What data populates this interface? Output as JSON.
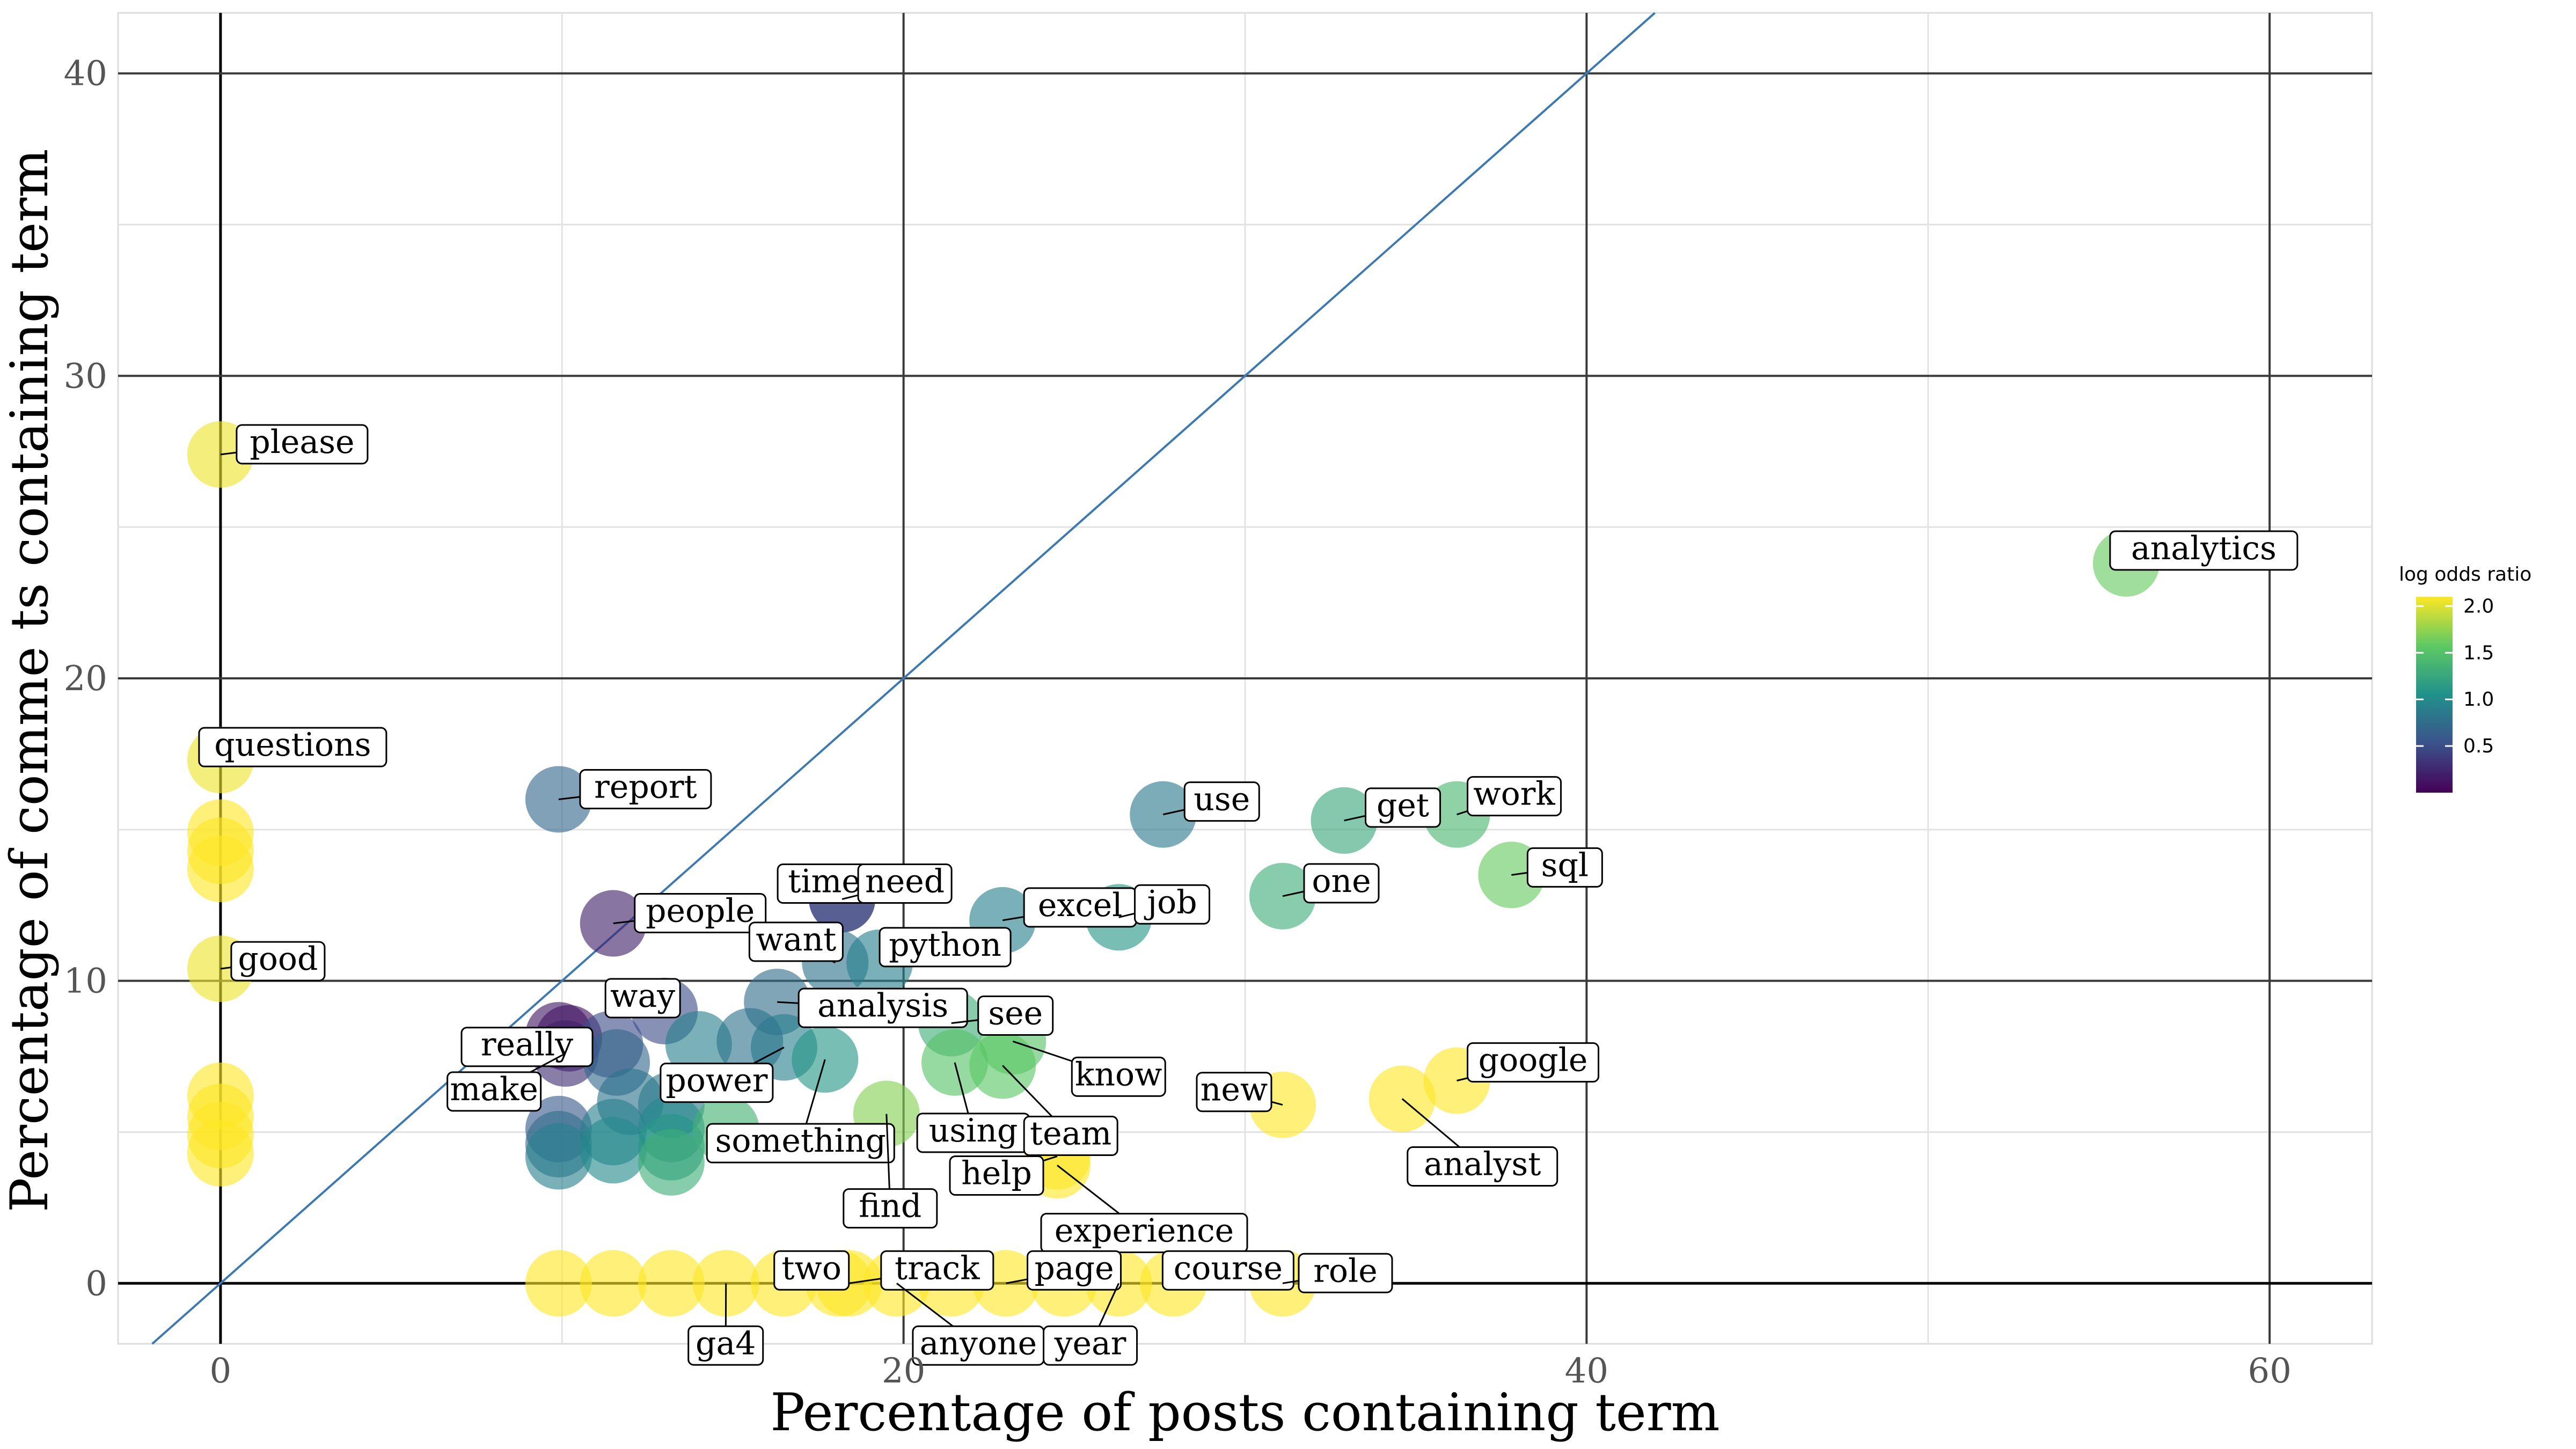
{
  "chart_data": {
    "type": "scatter",
    "xlabel": "Percentage of posts containing term",
    "ylabel": "Percentage of comme ts containing term",
    "xlim": [
      -3,
      63
    ],
    "ylim": [
      -2,
      42
    ],
    "x_ticks": [
      "0",
      "20",
      "40",
      "60"
    ],
    "y_ticks": [
      "0",
      "10",
      "20",
      "30",
      "40"
    ],
    "diagonal_reference_line": true,
    "grid": true,
    "legend": {
      "title": "log odds ratio",
      "ticks": [
        "0.5",
        "1.0",
        "1.5",
        "2.0"
      ],
      "placement": "right",
      "palette": [
        "#440154",
        "#3b528b",
        "#21918c",
        "#5ec962",
        "#fde725"
      ]
    },
    "points": [
      {
        "x": 0.0,
        "y": 27.4,
        "log_odds": 2.05,
        "label": "please"
      },
      {
        "x": 0.0,
        "y": 17.3,
        "log_odds": 2.05,
        "label": "questions"
      },
      {
        "x": 0.0,
        "y": 10.4,
        "log_odds": 2.05,
        "label": "good"
      },
      {
        "x": 0.0,
        "y": 14.9,
        "log_odds": 2.1
      },
      {
        "x": 0.0,
        "y": 14.3,
        "log_odds": 2.1
      },
      {
        "x": 0.0,
        "y": 13.7,
        "log_odds": 2.1
      },
      {
        "x": 0.0,
        "y": 6.2,
        "log_odds": 2.1
      },
      {
        "x": 0.0,
        "y": 5.5,
        "log_odds": 2.1
      },
      {
        "x": 0.0,
        "y": 4.9,
        "log_odds": 2.1
      },
      {
        "x": 0.0,
        "y": 4.3,
        "log_odds": 2.1
      },
      {
        "x": 9.9,
        "y": 16.0,
        "log_odds": 0.7,
        "label": "report"
      },
      {
        "x": 11.5,
        "y": 11.9,
        "log_odds": 0.2,
        "label": "people"
      },
      {
        "x": 18.2,
        "y": 12.7,
        "log_odds": 0.4,
        "label": "time"
      },
      {
        "x": 18.2,
        "y": 12.7,
        "log_odds": 0.45,
        "label": "need"
      },
      {
        "x": 18.0,
        "y": 10.6,
        "log_odds": 0.8,
        "label": "want"
      },
      {
        "x": 19.3,
        "y": 10.6,
        "log_odds": 0.9,
        "label": "python"
      },
      {
        "x": 13.0,
        "y": 9.0,
        "log_odds": 0.5,
        "label": "way"
      },
      {
        "x": 16.3,
        "y": 9.3,
        "log_odds": 0.75,
        "label": "analysis"
      },
      {
        "x": 10.2,
        "y": 8.1,
        "log_odds": 0.1,
        "label": "really"
      },
      {
        "x": 10.1,
        "y": 7.6,
        "log_odds": 0.3,
        "label": "make"
      },
      {
        "x": 16.5,
        "y": 7.8,
        "log_odds": 0.9,
        "label": "power"
      },
      {
        "x": 17.7,
        "y": 7.4,
        "log_odds": 1.1,
        "label": "something"
      },
      {
        "x": 21.4,
        "y": 8.6,
        "log_odds": 1.3,
        "label": "see"
      },
      {
        "x": 21.5,
        "y": 7.3,
        "log_odds": 1.5,
        "label": "using"
      },
      {
        "x": 23.2,
        "y": 8.0,
        "log_odds": 1.5,
        "label": "know"
      },
      {
        "x": 22.9,
        "y": 7.2,
        "log_odds": 1.55,
        "label": "team"
      },
      {
        "x": 19.5,
        "y": 5.6,
        "log_odds": 1.7,
        "label": "find"
      },
      {
        "x": 24.5,
        "y": 4.2,
        "log_odds": 2.1,
        "label": "help"
      },
      {
        "x": 24.5,
        "y": 3.9,
        "log_odds": 2.1,
        "label": "experience"
      },
      {
        "x": 22.9,
        "y": 12.0,
        "log_odds": 0.9,
        "label": "excel"
      },
      {
        "x": 26.3,
        "y": 12.1,
        "log_odds": 1.1,
        "label": "job"
      },
      {
        "x": 27.6,
        "y": 15.5,
        "log_odds": 0.85,
        "label": "use"
      },
      {
        "x": 32.9,
        "y": 15.3,
        "log_odds": 1.25,
        "label": "get"
      },
      {
        "x": 36.2,
        "y": 15.5,
        "log_odds": 1.4,
        "label": "work"
      },
      {
        "x": 31.1,
        "y": 12.8,
        "log_odds": 1.3,
        "label": "one"
      },
      {
        "x": 37.8,
        "y": 13.5,
        "log_odds": 1.6,
        "label": "sql"
      },
      {
        "x": 31.1,
        "y": 5.9,
        "log_odds": 2.1,
        "label": "new"
      },
      {
        "x": 34.6,
        "y": 6.1,
        "log_odds": 2.1,
        "label": "analyst"
      },
      {
        "x": 36.2,
        "y": 6.7,
        "log_odds": 2.1,
        "label": "google"
      },
      {
        "x": 55.8,
        "y": 23.8,
        "log_odds": 1.6,
        "label": "analytics"
      },
      {
        "x": 9.9,
        "y": 8.2,
        "log_odds": 0.15
      },
      {
        "x": 11.4,
        "y": 7.9,
        "log_odds": 0.5
      },
      {
        "x": 11.6,
        "y": 7.3,
        "log_odds": 0.7
      },
      {
        "x": 12.0,
        "y": 6.0,
        "log_odds": 0.8
      },
      {
        "x": 9.9,
        "y": 5.1,
        "log_odds": 0.6
      },
      {
        "x": 9.9,
        "y": 4.6,
        "log_odds": 0.75
      },
      {
        "x": 9.9,
        "y": 4.2,
        "log_odds": 0.9
      },
      {
        "x": 11.5,
        "y": 5.0,
        "log_odds": 0.9
      },
      {
        "x": 11.5,
        "y": 4.4,
        "log_odds": 1.0
      },
      {
        "x": 13.2,
        "y": 5.9,
        "log_odds": 0.85
      },
      {
        "x": 13.2,
        "y": 5.1,
        "log_odds": 1.0
      },
      {
        "x": 13.2,
        "y": 4.5,
        "log_odds": 1.1
      },
      {
        "x": 13.2,
        "y": 4.0,
        "log_odds": 1.3
      },
      {
        "x": 14.8,
        "y": 5.1,
        "log_odds": 1.35
      },
      {
        "x": 14.0,
        "y": 7.9,
        "log_odds": 0.9
      },
      {
        "x": 15.5,
        "y": 8.0,
        "log_odds": 0.8
      },
      {
        "x": 9.9,
        "y": 0.0,
        "log_odds": 2.1
      },
      {
        "x": 11.5,
        "y": 0.0,
        "log_odds": 2.1
      },
      {
        "x": 13.2,
        "y": 0.0,
        "log_odds": 2.1
      },
      {
        "x": 14.8,
        "y": 0.0,
        "log_odds": 2.1,
        "label": "ga4"
      },
      {
        "x": 16.5,
        "y": 0.0,
        "log_odds": 2.1
      },
      {
        "x": 18.1,
        "y": 0.0,
        "log_odds": 2.1,
        "label": "two"
      },
      {
        "x": 18.4,
        "y": 0.0,
        "log_odds": 2.1,
        "label": "track"
      },
      {
        "x": 19.8,
        "y": 0.0,
        "log_odds": 2.1,
        "label": "anyone"
      },
      {
        "x": 21.4,
        "y": 0.0,
        "log_odds": 2.1
      },
      {
        "x": 23.0,
        "y": 0.0,
        "log_odds": 2.1,
        "label": "page"
      },
      {
        "x": 24.7,
        "y": 0.0,
        "log_odds": 2.1
      },
      {
        "x": 26.3,
        "y": 0.0,
        "log_odds": 2.1,
        "label": "year"
      },
      {
        "x": 27.9,
        "y": 0.0,
        "log_odds": 2.1,
        "label": "course"
      },
      {
        "x": 31.1,
        "y": 0.0,
        "log_odds": 2.1,
        "label": "role"
      }
    ]
  }
}
